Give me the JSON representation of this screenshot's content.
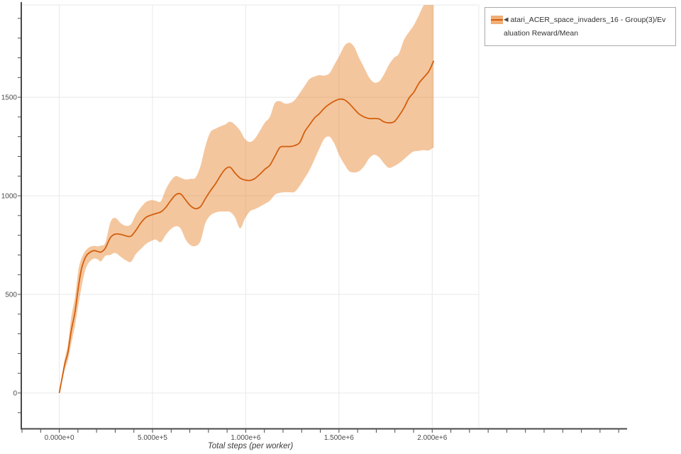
{
  "chart_data": {
    "type": "line",
    "title": "",
    "xlabel": "Total steps (per worker)",
    "ylabel": "",
    "grid": true,
    "legend_position": "top-right",
    "xlim": [
      -200000,
      2250000
    ],
    "ylim": [
      -180,
      1968
    ],
    "x_ticks": [
      {
        "v": 0,
        "label": "0.000e+0"
      },
      {
        "v": 500000,
        "label": "5.000e+5"
      },
      {
        "v": 1000000,
        "label": "1.000e+6"
      },
      {
        "v": 1500000,
        "label": "1.500e+6"
      },
      {
        "v": 2000000,
        "label": "2.000e+6"
      }
    ],
    "y_ticks": [
      {
        "v": 0,
        "label": "0"
      },
      {
        "v": 500,
        "label": "500"
      },
      {
        "v": 1000,
        "label": "1000"
      },
      {
        "v": 1500,
        "label": "1500"
      }
    ],
    "x_minor_step": 100000,
    "y_minor_step": 100,
    "series": [
      {
        "name": "atari_ACER_space_invaders_16 - Group(3)/Evaluation Reward/Mean",
        "x": [
          0,
          15000,
          30000,
          46000,
          65000,
          84000,
          103000,
          118000,
          133000,
          148000,
          167000,
          186000,
          205000,
          224000,
          247000,
          274000,
          300000,
          331000,
          357000,
          384000,
          411000,
          437000,
          464000,
          491000,
          517000,
          544000,
          570000,
          597000,
          624000,
          650000,
          677000,
          703000,
          730000,
          757000,
          783000,
          810000,
          837000,
          863000,
          890000,
          916000,
          943000,
          970000,
          996000,
          1023000,
          1049000,
          1076000,
          1103000,
          1129000,
          1156000,
          1183000,
          1209000,
          1236000,
          1262000,
          1289000,
          1316000,
          1342000,
          1369000,
          1395000,
          1422000,
          1449000,
          1475000,
          1502000,
          1529000,
          1555000,
          1582000,
          1608000,
          1635000,
          1662000,
          1688000,
          1715000,
          1741000,
          1768000,
          1795000,
          1821000,
          1848000,
          1875000,
          1901000,
          1928000,
          1954000,
          1981000,
          2008000
        ],
        "mean": [
          0,
          75,
          150,
          205,
          320,
          410,
          540,
          625,
          672,
          700,
          715,
          722,
          718,
          715,
          735,
          788,
          806,
          804,
          797,
          795,
          825,
          862,
          890,
          902,
          910,
          918,
          940,
          975,
          1005,
          1010,
          980,
          950,
          935,
          945,
          985,
          1025,
          1060,
          1100,
          1135,
          1145,
          1115,
          1090,
          1080,
          1078,
          1088,
          1110,
          1135,
          1155,
          1200,
          1245,
          1250,
          1250,
          1255,
          1270,
          1325,
          1360,
          1395,
          1417,
          1445,
          1465,
          1480,
          1490,
          1487,
          1468,
          1440,
          1415,
          1400,
          1392,
          1392,
          1390,
          1375,
          1370,
          1375,
          1405,
          1445,
          1495,
          1525,
          1570,
          1600,
          1630,
          1685
        ],
        "lower": [
          0,
          60,
          120,
          165,
          255,
          340,
          450,
          530,
          600,
          645,
          670,
          682,
          678,
          668,
          695,
          700,
          710,
          690,
          673,
          665,
          705,
          730,
          755,
          770,
          778,
          765,
          800,
          830,
          845,
          835,
          780,
          750,
          745,
          770,
          860,
          900,
          915,
          920,
          920,
          918,
          890,
          835,
          885,
          922,
          932,
          945,
          960,
          975,
          1005,
          1015,
          1018,
          1018,
          1020,
          1050,
          1090,
          1130,
          1185,
          1240,
          1290,
          1300,
          1265,
          1205,
          1160,
          1125,
          1118,
          1125,
          1150,
          1190,
          1208,
          1195,
          1165,
          1142,
          1150,
          1165,
          1185,
          1208,
          1225,
          1228,
          1232,
          1230,
          1245
        ],
        "upper": [
          0,
          90,
          175,
          245,
          390,
          485,
          625,
          680,
          710,
          730,
          742,
          746,
          744,
          748,
          762,
          865,
          888,
          860,
          848,
          855,
          905,
          940,
          968,
          978,
          975,
          972,
          1030,
          1075,
          1100,
          1092,
          1083,
          1086,
          1092,
          1150,
          1250,
          1322,
          1340,
          1352,
          1362,
          1376,
          1360,
          1330,
          1288,
          1273,
          1290,
          1330,
          1372,
          1400,
          1470,
          1480,
          1468,
          1470,
          1485,
          1520,
          1558,
          1592,
          1605,
          1612,
          1610,
          1622,
          1665,
          1710,
          1760,
          1777,
          1755,
          1700,
          1650,
          1600,
          1575,
          1580,
          1615,
          1665,
          1700,
          1720,
          1790,
          1830,
          1865,
          1915,
          1965,
          1975,
          1975
        ]
      }
    ]
  },
  "legend": {
    "label": "atari_ACER_space_invaders_16 - Group(3)/Evaluation Reward/Mean",
    "collapse_glyph": "◀"
  },
  "colors": {
    "line": "#d35f0e",
    "band": "rgba(230,126,34,0.44)",
    "band_swatch": "rgba(230,126,34,0.62)",
    "grid": "#e8e8e8",
    "spine": "#4a4a4a",
    "tick_label": "#4a4a4a"
  }
}
